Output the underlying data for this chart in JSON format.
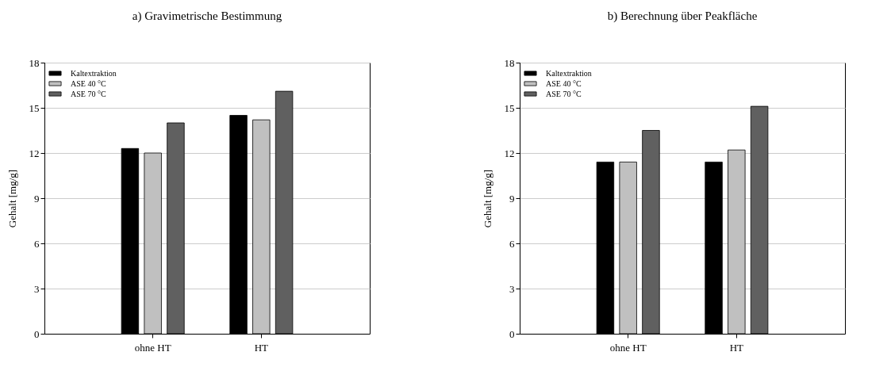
{
  "chart_data": [
    {
      "type": "bar",
      "title": "a) Gravimetrische Bestimmung",
      "ylabel": "Gehalt [mg/g]",
      "categories": [
        "ohne HT",
        "HT"
      ],
      "ylim": [
        0,
        18
      ],
      "yticks": [
        0,
        3,
        6,
        9,
        12,
        15,
        18
      ],
      "grid": "y",
      "legend": "top left",
      "series": [
        {
          "name": "Kaltextraktion",
          "color": "#000000",
          "values": [
            12.3,
            14.5
          ]
        },
        {
          "name": "ASE 40 °C",
          "color": "#c0c0c0",
          "values": [
            12.0,
            14.2
          ]
        },
        {
          "name": "ASE 70 °C",
          "color": "#606060",
          "values": [
            14.0,
            16.1
          ]
        }
      ]
    },
    {
      "type": "bar",
      "title": "b) Berechnung über Peakfläche",
      "ylabel": "Gehalt [mg/g]",
      "categories": [
        "ohne HT",
        "HT"
      ],
      "ylim": [
        0,
        18
      ],
      "yticks": [
        0,
        3,
        6,
        9,
        12,
        15,
        18
      ],
      "grid": "y",
      "legend": "top left",
      "series": [
        {
          "name": "Kaltextraktion",
          "color": "#000000",
          "values": [
            11.4,
            11.4
          ]
        },
        {
          "name": "ASE 40 °C",
          "color": "#c0c0c0",
          "values": [
            11.4,
            12.2
          ]
        },
        {
          "name": "ASE 70 °C",
          "color": "#606060",
          "values": [
            13.5,
            15.1
          ]
        }
      ]
    }
  ]
}
